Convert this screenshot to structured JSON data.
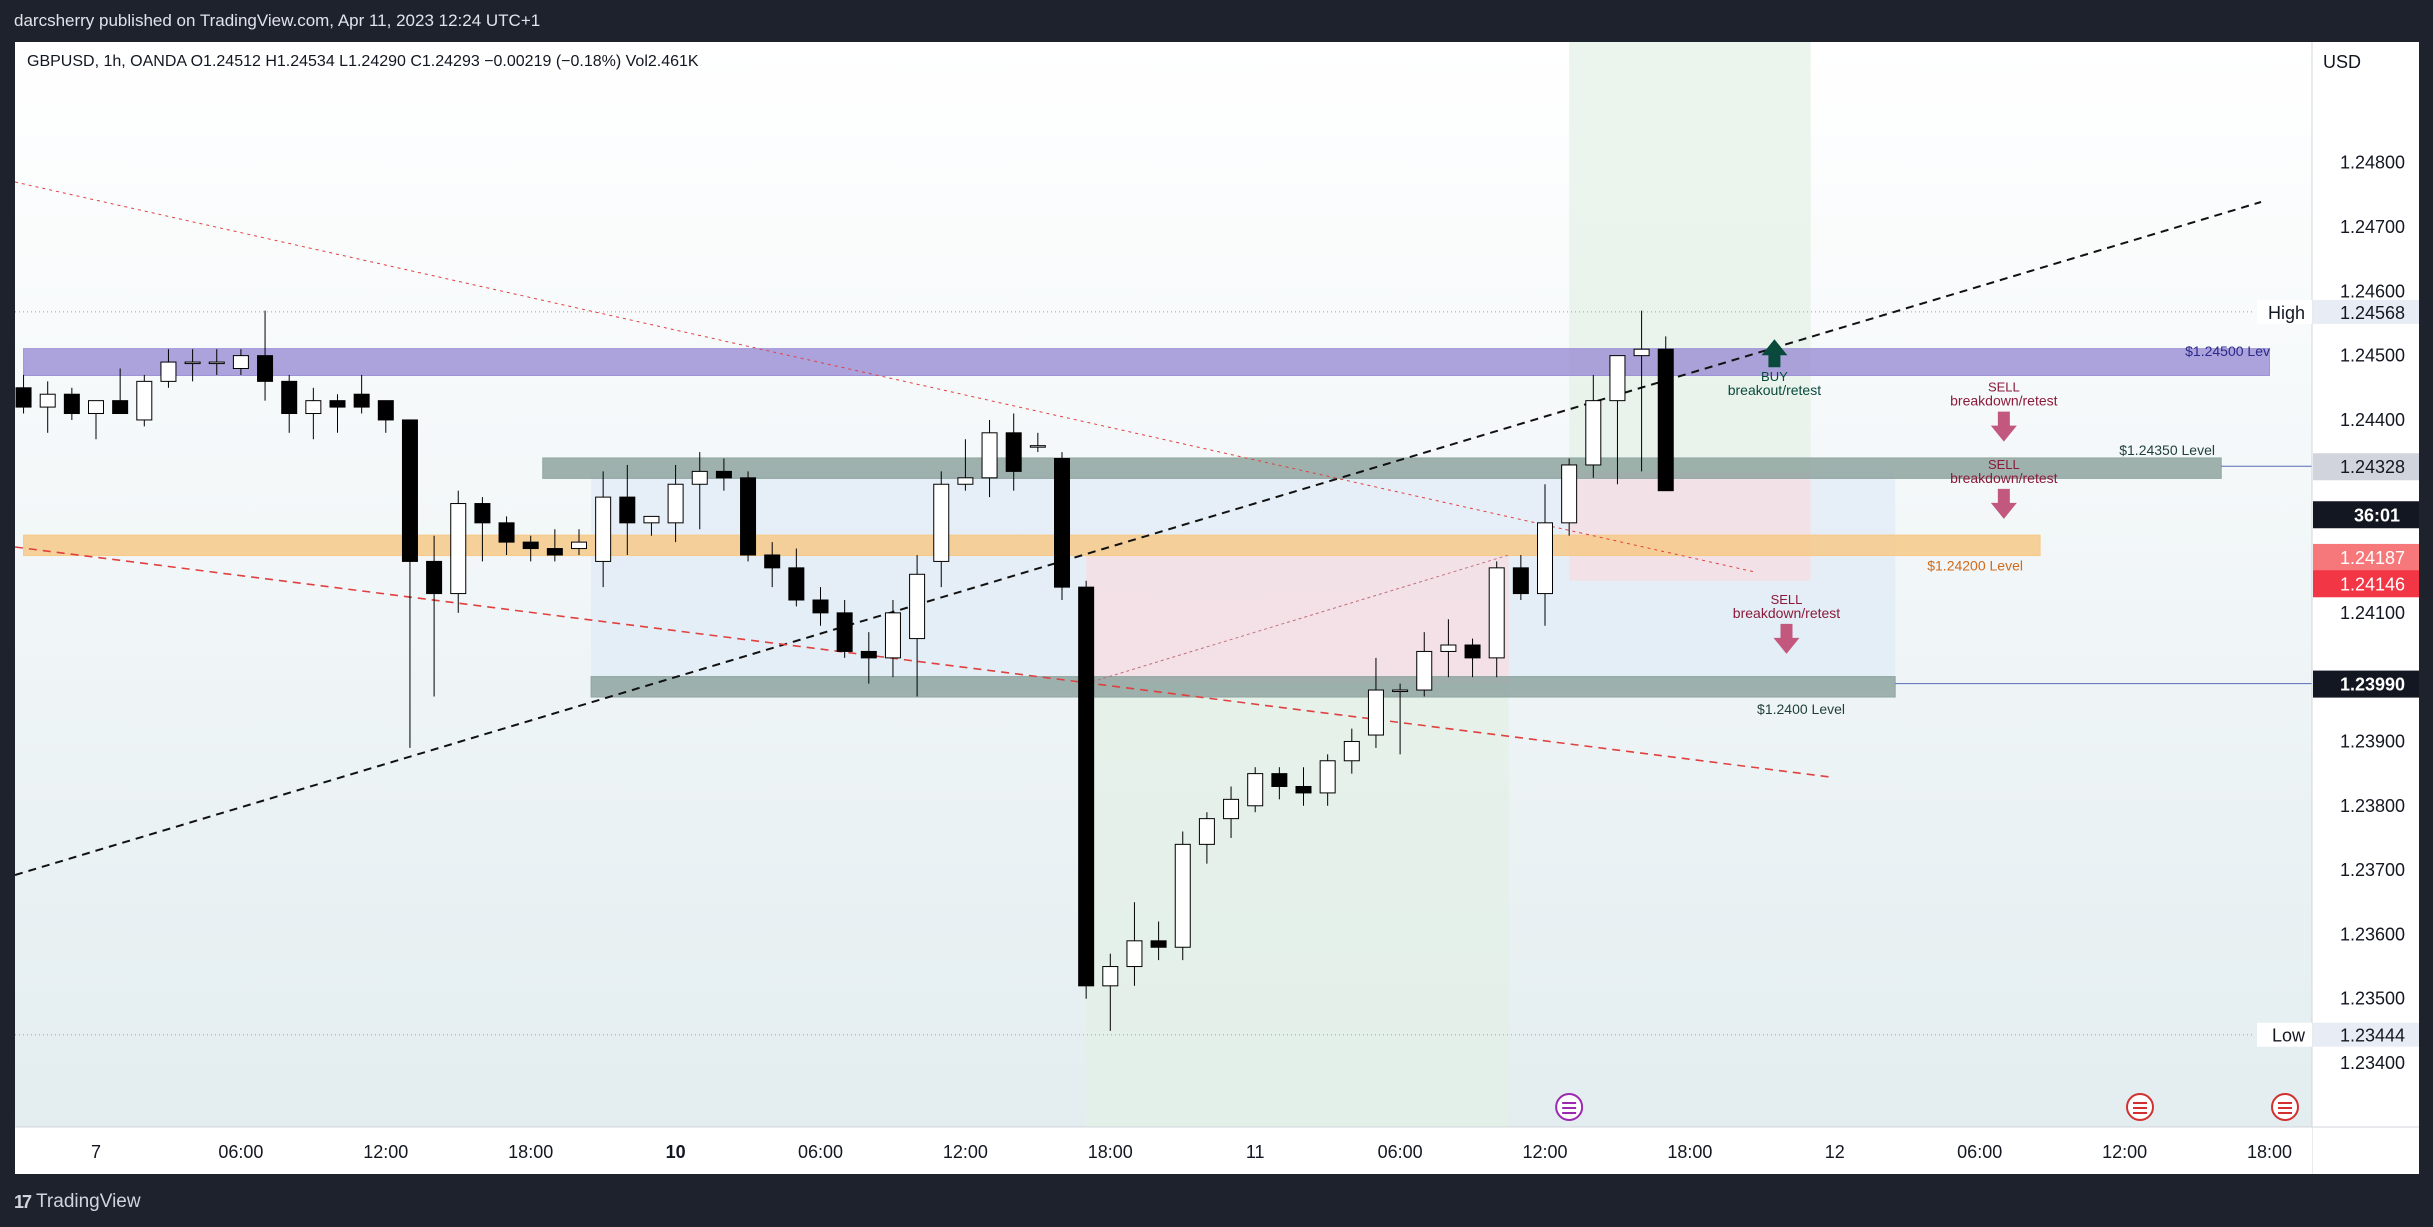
{
  "header": {
    "publisher_line": "darcsherry published on TradingView.com, Apr 11, 2023 12:24 UTC+1"
  },
  "footer": {
    "brand": "TradingView"
  },
  "chart_data": {
    "type": "candlestick",
    "legend": {
      "symbol": "GBPUSD, 1h, OANDA",
      "open": "O1.24512",
      "high": "H1.24534",
      "low": "L1.24290",
      "close": "C1.24293",
      "change": "−0.00219 (−0.18%)",
      "volume": "Vol2.461K"
    },
    "currency": "USD",
    "ylim": [
      1.2332,
      1.2499
    ],
    "y_ticks": [
      {
        "value": 1.248,
        "label": "1.24800"
      },
      {
        "value": 1.247,
        "label": "1.24700"
      },
      {
        "value": 1.246,
        "label": "1.24600"
      },
      {
        "value": 1.245,
        "label": "1.24500"
      },
      {
        "value": 1.244,
        "label": "1.24400"
      },
      {
        "value": 1.241,
        "label": "1.24100"
      },
      {
        "value": 1.239,
        "label": "1.23900"
      },
      {
        "value": 1.238,
        "label": "1.23800"
      },
      {
        "value": 1.237,
        "label": "1.23700"
      },
      {
        "value": 1.236,
        "label": "1.23600"
      },
      {
        "value": 1.235,
        "label": "1.23500"
      },
      {
        "value": 1.234,
        "label": "1.23400"
      }
    ],
    "x_range": [
      -3,
      91
    ],
    "x_ticks": [
      {
        "x": 0,
        "label": "7",
        "bold": false
      },
      {
        "x": 6,
        "label": "06:00",
        "bold": false
      },
      {
        "x": 12,
        "label": "12:00",
        "bold": false
      },
      {
        "x": 18,
        "label": "18:00",
        "bold": false
      },
      {
        "x": 24,
        "label": "10",
        "bold": true
      },
      {
        "x": 30,
        "label": "06:00",
        "bold": false
      },
      {
        "x": 36,
        "label": "12:00",
        "bold": false
      },
      {
        "x": 42,
        "label": "18:00",
        "bold": false
      },
      {
        "x": 48,
        "label": "11",
        "bold": false
      },
      {
        "x": 54,
        "label": "06:00",
        "bold": false
      },
      {
        "x": 60,
        "label": "12:00",
        "bold": false
      },
      {
        "x": 66,
        "label": "18:00",
        "bold": false
      },
      {
        "x": 72,
        "label": "12",
        "bold": false
      },
      {
        "x": 78,
        "label": "06:00",
        "bold": false
      },
      {
        "x": 84,
        "label": "12:00",
        "bold": false
      },
      {
        "x": 90,
        "label": "18:00",
        "bold": false
      }
    ],
    "candles": [
      {
        "x": -3,
        "o": 1.2445,
        "h": 1.2447,
        "l": 1.2441,
        "c": 1.2442
      },
      {
        "x": -2,
        "o": 1.2442,
        "h": 1.2446,
        "l": 1.2438,
        "c": 1.2444
      },
      {
        "x": -1,
        "o": 1.2444,
        "h": 1.2445,
        "l": 1.244,
        "c": 1.2441
      },
      {
        "x": 0,
        "o": 1.2441,
        "h": 1.2443,
        "l": 1.2437,
        "c": 1.2443
      },
      {
        "x": 1,
        "o": 1.2443,
        "h": 1.2448,
        "l": 1.2441,
        "c": 1.2441
      },
      {
        "x": 2,
        "o": 1.244,
        "h": 1.2447,
        "l": 1.2439,
        "c": 1.2446
      },
      {
        "x": 3,
        "o": 1.2446,
        "h": 1.2451,
        "l": 1.2445,
        "c": 1.2449
      },
      {
        "x": 4,
        "o": 1.2449,
        "h": 1.2451,
        "l": 1.2446,
        "c": 1.2449
      },
      {
        "x": 5,
        "o": 1.2449,
        "h": 1.2451,
        "l": 1.2447,
        "c": 1.2449
      },
      {
        "x": 6,
        "o": 1.2448,
        "h": 1.2451,
        "l": 1.2447,
        "c": 1.245
      },
      {
        "x": 7,
        "o": 1.245,
        "h": 1.2457,
        "l": 1.2443,
        "c": 1.2446
      },
      {
        "x": 8,
        "o": 1.2446,
        "h": 1.2447,
        "l": 1.2438,
        "c": 1.2441
      },
      {
        "x": 9,
        "o": 1.2441,
        "h": 1.2445,
        "l": 1.2437,
        "c": 1.2443
      },
      {
        "x": 10,
        "o": 1.2443,
        "h": 1.2444,
        "l": 1.2438,
        "c": 1.2442
      },
      {
        "x": 11,
        "o": 1.2444,
        "h": 1.2447,
        "l": 1.2441,
        "c": 1.2442
      },
      {
        "x": 12,
        "o": 1.2443,
        "h": 1.2443,
        "l": 1.2438,
        "c": 1.244
      },
      {
        "x": 13,
        "o": 1.244,
        "h": 1.244,
        "l": 1.2389,
        "c": 1.2418
      },
      {
        "x": 14,
        "o": 1.2418,
        "h": 1.2422,
        "l": 1.2397,
        "c": 1.2413
      },
      {
        "x": 15,
        "o": 1.2413,
        "h": 1.2429,
        "l": 1.241,
        "c": 1.2427
      },
      {
        "x": 16,
        "o": 1.2427,
        "h": 1.2428,
        "l": 1.2418,
        "c": 1.2424
      },
      {
        "x": 17,
        "o": 1.2424,
        "h": 1.2425,
        "l": 1.2419,
        "c": 1.2421
      },
      {
        "x": 18,
        "o": 1.2421,
        "h": 1.2422,
        "l": 1.2418,
        "c": 1.242
      },
      {
        "x": 19,
        "o": 1.242,
        "h": 1.2423,
        "l": 1.2418,
        "c": 1.2419
      },
      {
        "x": 20,
        "o": 1.242,
        "h": 1.2423,
        "l": 1.2419,
        "c": 1.2421
      },
      {
        "x": 21,
        "o": 1.2418,
        "h": 1.2432,
        "l": 1.2414,
        "c": 1.2428
      },
      {
        "x": 22,
        "o": 1.2428,
        "h": 1.2433,
        "l": 1.2419,
        "c": 1.2424
      },
      {
        "x": 23,
        "o": 1.2424,
        "h": 1.2425,
        "l": 1.2422,
        "c": 1.2425
      },
      {
        "x": 24,
        "o": 1.2424,
        "h": 1.2433,
        "l": 1.2421,
        "c": 1.243
      },
      {
        "x": 25,
        "o": 1.243,
        "h": 1.2435,
        "l": 1.2423,
        "c": 1.2432
      },
      {
        "x": 26,
        "o": 1.2432,
        "h": 1.2434,
        "l": 1.2429,
        "c": 1.2431
      },
      {
        "x": 27,
        "o": 1.2431,
        "h": 1.2432,
        "l": 1.2418,
        "c": 1.2419
      },
      {
        "x": 28,
        "o": 1.2419,
        "h": 1.2421,
        "l": 1.2414,
        "c": 1.2417
      },
      {
        "x": 29,
        "o": 1.2417,
        "h": 1.242,
        "l": 1.2411,
        "c": 1.2412
      },
      {
        "x": 30,
        "o": 1.2412,
        "h": 1.2414,
        "l": 1.2408,
        "c": 1.241
      },
      {
        "x": 31,
        "o": 1.241,
        "h": 1.2412,
        "l": 1.2403,
        "c": 1.2404
      },
      {
        "x": 32,
        "o": 1.2404,
        "h": 1.2407,
        "l": 1.2399,
        "c": 1.2403
      },
      {
        "x": 33,
        "o": 1.2403,
        "h": 1.2412,
        "l": 1.24,
        "c": 1.241
      },
      {
        "x": 34,
        "o": 1.2406,
        "h": 1.2419,
        "l": 1.2397,
        "c": 1.2416
      },
      {
        "x": 35,
        "o": 1.2418,
        "h": 1.2432,
        "l": 1.2414,
        "c": 1.243
      },
      {
        "x": 36,
        "o": 1.243,
        "h": 1.2437,
        "l": 1.2429,
        "c": 1.2431
      },
      {
        "x": 37,
        "o": 1.2431,
        "h": 1.244,
        "l": 1.2428,
        "c": 1.2438
      },
      {
        "x": 38,
        "o": 1.2438,
        "h": 1.2441,
        "l": 1.2429,
        "c": 1.2432
      },
      {
        "x": 39,
        "o": 1.2436,
        "h": 1.2438,
        "l": 1.2435,
        "c": 1.2436
      },
      {
        "x": 40,
        "o": 1.2434,
        "h": 1.2435,
        "l": 1.2412,
        "c": 1.2414
      },
      {
        "x": 41,
        "o": 1.2414,
        "h": 1.2415,
        "l": 1.235,
        "c": 1.2352
      },
      {
        "x": 42,
        "o": 1.2352,
        "h": 1.2357,
        "l": 1.2345,
        "c": 1.2355
      },
      {
        "x": 43,
        "o": 1.2355,
        "h": 1.2365,
        "l": 1.2352,
        "c": 1.2359
      },
      {
        "x": 44,
        "o": 1.2359,
        "h": 1.2362,
        "l": 1.2356,
        "c": 1.2358
      },
      {
        "x": 45,
        "o": 1.2358,
        "h": 1.2376,
        "l": 1.2356,
        "c": 1.2374
      },
      {
        "x": 46,
        "o": 1.2374,
        "h": 1.2379,
        "l": 1.2371,
        "c": 1.2378
      },
      {
        "x": 47,
        "o": 1.2378,
        "h": 1.2383,
        "l": 1.2375,
        "c": 1.2381
      },
      {
        "x": 48,
        "o": 1.238,
        "h": 1.2386,
        "l": 1.2379,
        "c": 1.2385
      },
      {
        "x": 49,
        "o": 1.2385,
        "h": 1.2386,
        "l": 1.2381,
        "c": 1.2383
      },
      {
        "x": 50,
        "o": 1.2383,
        "h": 1.2386,
        "l": 1.238,
        "c": 1.2382
      },
      {
        "x": 51,
        "o": 1.2382,
        "h": 1.2388,
        "l": 1.238,
        "c": 1.2387
      },
      {
        "x": 52,
        "o": 1.2387,
        "h": 1.2392,
        "l": 1.2385,
        "c": 1.239
      },
      {
        "x": 53,
        "o": 1.2391,
        "h": 1.2403,
        "l": 1.2389,
        "c": 1.2398
      },
      {
        "x": 54,
        "o": 1.2398,
        "h": 1.2399,
        "l": 1.2388,
        "c": 1.2398
      },
      {
        "x": 55,
        "o": 1.2398,
        "h": 1.2407,
        "l": 1.2397,
        "c": 1.2404
      },
      {
        "x": 56,
        "o": 1.2404,
        "h": 1.2409,
        "l": 1.24,
        "c": 1.2405
      },
      {
        "x": 57,
        "o": 1.2405,
        "h": 1.2406,
        "l": 1.24,
        "c": 1.2403
      },
      {
        "x": 58,
        "o": 1.2403,
        "h": 1.2418,
        "l": 1.24,
        "c": 1.2417
      },
      {
        "x": 59,
        "o": 1.2417,
        "h": 1.2419,
        "l": 1.2412,
        "c": 1.2413
      },
      {
        "x": 60,
        "o": 1.2413,
        "h": 1.243,
        "l": 1.2408,
        "c": 1.2424
      },
      {
        "x": 61,
        "o": 1.2424,
        "h": 1.2434,
        "l": 1.2422,
        "c": 1.2433
      },
      {
        "x": 62,
        "o": 1.2433,
        "h": 1.2447,
        "l": 1.2431,
        "c": 1.2443
      },
      {
        "x": 63,
        "o": 1.2443,
        "h": 1.2449,
        "l": 1.243,
        "c": 1.245
      },
      {
        "x": 64,
        "o": 1.245,
        "h": 1.2457,
        "l": 1.2432,
        "c": 1.2451
      },
      {
        "x": 65,
        "o": 1.2451,
        "h": 1.2453,
        "l": 1.2429,
        "c": 1.2429
      }
    ],
    "zones": [
      {
        "name": "$1.24500 Lev",
        "from_x": -3,
        "to_x": 90,
        "y_low": 1.2448,
        "y_high": 1.245,
        "color": "#9f92d6",
        "label_color": "#2a2a8a"
      },
      {
        "name": "$1.24350 Level",
        "from_x": 18.5,
        "to_x": 88,
        "y_low": 1.2432,
        "y_high": 1.2433,
        "color": "#8fa5a0",
        "label_color": "#1f3f3a"
      },
      {
        "name": "$1.24200 Level",
        "from_x": -3,
        "to_x": 80.5,
        "y_low": 1.242,
        "y_high": 1.2421,
        "color": "#f7c988",
        "label_color": "#d06a1a"
      },
      {
        "name": "$1.2400 Level",
        "from_x": 20.5,
        "to_x": 74.5,
        "y_low": 1.2398,
        "y_high": 1.2399,
        "color": "#8fa5a0",
        "label_color": "#1f3f3a"
      }
    ],
    "annotations": [
      {
        "type": "buy",
        "title": "BUY",
        "subtitle": "breakout/retest",
        "x": 69.5,
        "y": 1.2451,
        "color": "#0a4a3c"
      },
      {
        "type": "sell",
        "title": "SELL",
        "subtitle": "breakdown/retest",
        "x": 79,
        "y": 1.2436,
        "color": "#8b1a3a"
      },
      {
        "type": "sell",
        "title": "SELL",
        "subtitle": "breakdown/retest",
        "x": 79,
        "y": 1.2424,
        "color": "#8b1a3a"
      },
      {
        "type": "sell",
        "title": "SELL",
        "subtitle": "breakdown/retest",
        "x": 70,
        "y": 1.2403,
        "color": "#8b1a3a"
      }
    ],
    "high_marker": {
      "label": "High",
      "value": "1.24568",
      "y": 1.24568
    },
    "low_marker": {
      "label": "Low",
      "value": "1.23444",
      "y": 1.23444
    },
    "price_badges": [
      {
        "label": "1.24328",
        "y": 1.24328,
        "bg": "#d1d4dc",
        "color": "#131722"
      },
      {
        "label": "36:01",
        "y": 1.243,
        "bg": "#131722",
        "color": "#ffffff"
      },
      {
        "label": "1.24187",
        "y": 1.24187,
        "bg": "#f7787a",
        "color": "#ffffff"
      },
      {
        "label": "1.24146",
        "y": 1.24146,
        "bg": "#f23645",
        "color": "#ffffff"
      },
      {
        "label": "1.23990",
        "y": 1.2399,
        "bg": "#131722",
        "color": "#ffffff"
      }
    ],
    "colors": {
      "bull_body": "#ffffff",
      "bear_body": "#000000",
      "wick": "#000000",
      "trendline_black": "#111111",
      "trendline_red": "#e04040"
    }
  }
}
